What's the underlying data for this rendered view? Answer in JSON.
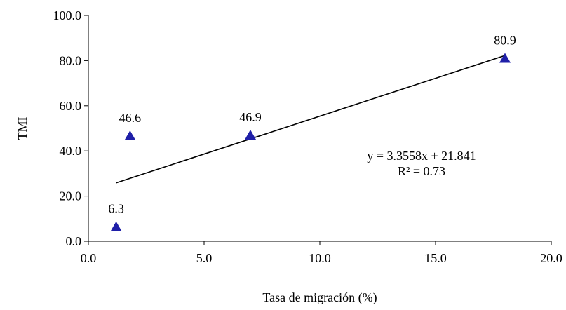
{
  "chart_data": {
    "type": "scatter",
    "title": "",
    "xlabel": "Tasa de migración  (%)",
    "ylabel": "TMI",
    "xlim": [
      0,
      20
    ],
    "ylim": [
      0,
      100
    ],
    "x_ticks": [
      "0.0",
      "5.0",
      "10.0",
      "15.0",
      "20.0"
    ],
    "y_ticks": [
      "0.0",
      "20.0",
      "40.0",
      "60.0",
      "80.0",
      "100.0"
    ],
    "grid": false,
    "legend": "none",
    "marker": "triangle",
    "marker_color": "#1f1fa8",
    "points": [
      {
        "x": 1.2,
        "y": 6.3,
        "label": "6.3"
      },
      {
        "x": 1.8,
        "y": 46.6,
        "label": "46.6"
      },
      {
        "x": 7.0,
        "y": 46.9,
        "label": "46.9"
      },
      {
        "x": 18.0,
        "y": 80.9,
        "label": "80.9"
      }
    ],
    "trendline": {
      "type": "linear",
      "slope": 3.3558,
      "intercept": 21.841,
      "x_range": [
        1.2,
        18.0
      ],
      "equation": "y = 3.3558x + 21.841",
      "r_squared": "R² = 0.73"
    }
  }
}
